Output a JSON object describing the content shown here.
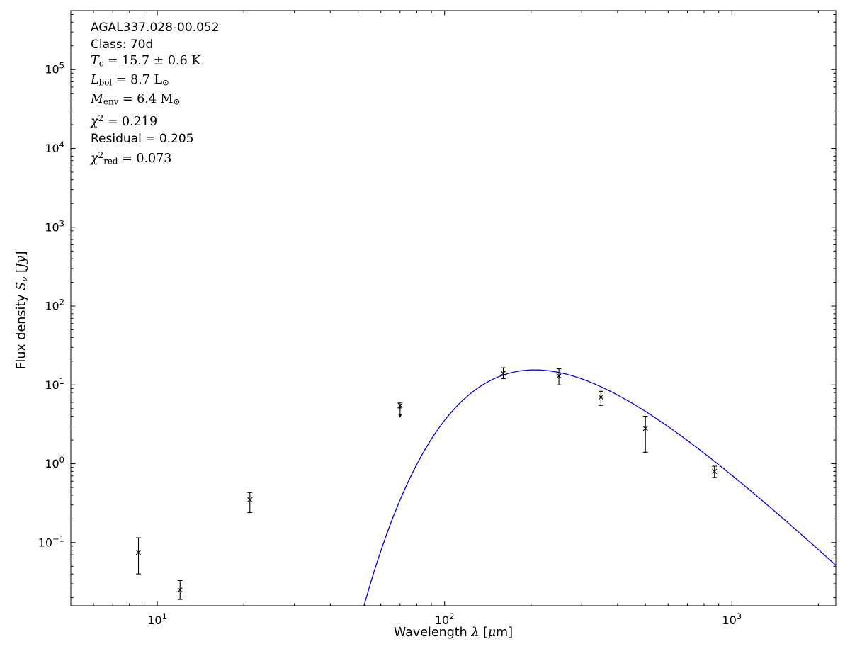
{
  "figure": {
    "background": "#ffffff",
    "frame_color": "#000000",
    "marker_color": "#000000",
    "curve_color": "#0000dd"
  },
  "annotation": {
    "lines": [
      {
        "font": "sans",
        "segments": [
          {
            "t": "AGAL337.028-00.052"
          }
        ]
      },
      {
        "font": "sans",
        "segments": [
          {
            "t": "Class: 70d"
          }
        ]
      },
      {
        "font": "math",
        "segments": [
          {
            "t": "T",
            "s": "it"
          },
          {
            "t": "c",
            "s": "sub"
          },
          {
            "t": " = 15.7 ± 0.6 K"
          }
        ]
      },
      {
        "font": "math",
        "segments": [
          {
            "t": "L",
            "s": "it"
          },
          {
            "t": "bol",
            "s": "sub"
          },
          {
            "t": " = 8.7 "
          },
          {
            "t": "L"
          },
          {
            "t": "⊙",
            "s": "sub"
          }
        ]
      },
      {
        "font": "math",
        "segments": [
          {
            "t": "M",
            "s": "it"
          },
          {
            "t": "env",
            "s": "sub"
          },
          {
            "t": " = 6.4 "
          },
          {
            "t": "M"
          },
          {
            "t": "⊙",
            "s": "sub"
          }
        ]
      },
      {
        "font": "math",
        "segments": [
          {
            "t": "χ",
            "s": "it"
          },
          {
            "t": "2",
            "s": "sup"
          },
          {
            "t": " = 0.219"
          }
        ]
      },
      {
        "font": "sans",
        "segments": [
          {
            "t": "Residual = 0.205"
          }
        ]
      },
      {
        "font": "math",
        "segments": [
          {
            "t": "χ",
            "s": "it"
          },
          {
            "t": "2",
            "s": "sup"
          },
          {
            "t": "red",
            "s": "sub"
          },
          {
            "t": " = 0.073"
          }
        ]
      }
    ]
  },
  "chart_data": {
    "type": "scatter",
    "title": "",
    "xlabel": "Wavelength λ [μm]",
    "ylabel": "Flux density S_ν [Jy]",
    "xlabel_segments": [
      {
        "t": "Wavelength "
      },
      {
        "t": "λ",
        "s": "it math"
      },
      {
        "t": " ["
      },
      {
        "t": "μ",
        "s": "it math"
      },
      {
        "t": "m]"
      }
    ],
    "ylabel_segments": [
      {
        "t": "Flux density "
      },
      {
        "t": "S",
        "s": "it math"
      },
      {
        "t": "ν",
        "s": "sub it math"
      },
      {
        "t": " ["
      },
      {
        "t": "Jy",
        "s": "it math"
      },
      {
        "t": "]"
      }
    ],
    "xscale": "log",
    "yscale": "log",
    "xlim": [
      5,
      2300
    ],
    "ylim": [
      0.0158,
      560000
    ],
    "grid": false,
    "legend": "none",
    "x_major_ticks": [
      10,
      100,
      1000
    ],
    "x_tick_labels": [
      "10^1",
      "10^2",
      "10^3"
    ],
    "y_major_ticks": [
      0.1,
      1,
      10,
      100,
      1000,
      10000,
      100000
    ],
    "y_tick_labels": [
      "10^-1",
      "10^0",
      "10^1",
      "10^2",
      "10^3",
      "10^4",
      "10^5"
    ],
    "series": [
      {
        "name": "photometry",
        "type": "scatter",
        "marker": "x",
        "color": "#000000",
        "points": [
          {
            "x": 8.6,
            "y": 0.075,
            "yerr_hi": 0.04,
            "yerr_lo": 0.035
          },
          {
            "x": 12,
            "y": 0.025,
            "yerr_hi": 0.008,
            "yerr_lo": 0.006
          },
          {
            "x": 21,
            "y": 0.35,
            "yerr_hi": 0.08,
            "yerr_lo": 0.11
          },
          {
            "x": 70,
            "y": 5.5,
            "yerr_hi": 0.5,
            "yerr_lo": 0.4,
            "upper_limit": true
          },
          {
            "x": 160,
            "y": 14.0,
            "yerr_hi": 2.5,
            "yerr_lo": 2.0
          },
          {
            "x": 250,
            "y": 13.0,
            "yerr_hi": 3.0,
            "yerr_lo": 3.0
          },
          {
            "x": 350,
            "y": 7.0,
            "yerr_hi": 1.3,
            "yerr_lo": 1.5
          },
          {
            "x": 500,
            "y": 2.8,
            "yerr_hi": 1.2,
            "yerr_lo": 1.4
          },
          {
            "x": 870,
            "y": 0.8,
            "yerr_hi": 0.13,
            "yerr_lo": 0.13
          }
        ]
      },
      {
        "name": "greybody_fit",
        "type": "line",
        "color": "#0000dd",
        "model": {
          "kind": "modified_blackbody",
          "T_K": 15.7,
          "beta": 1.5,
          "peak_wavelength_um": 200,
          "peak_flux_jy": 15.5
        },
        "x_range": [
          42,
          2300
        ]
      }
    ],
    "annotations": [
      "AGAL337.028-00.052",
      "Class: 70d",
      "T_c = 15.7 ± 0.6 K",
      "L_bol = 8.7 L_⊙",
      "M_env = 6.4 M_⊙",
      "χ^2 = 0.219",
      "Residual = 0.205",
      "χ^2_red = 0.073"
    ],
    "fit_results": {
      "source": "AGAL337.028-00.052",
      "class": "70d",
      "T_c_K": 15.7,
      "T_c_err_K": 0.6,
      "L_bol_Lsun": 8.7,
      "M_env_Msun": 6.4,
      "chi2": 0.219,
      "residual": 0.205,
      "chi2_red": 0.073
    }
  }
}
